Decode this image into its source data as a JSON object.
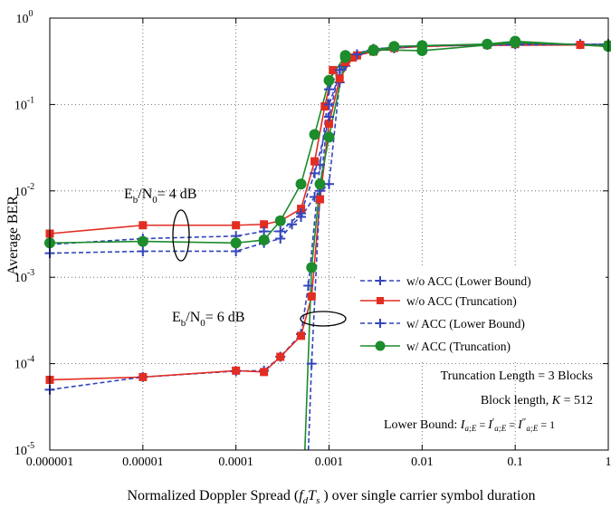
{
  "chart_data": {
    "type": "line",
    "xscale": "log",
    "yscale": "log",
    "xlim": [
      1e-06,
      1
    ],
    "ylim": [
      1e-05,
      1
    ],
    "xlabel": "Normalized Doppler Spread (f_d T_s ) over single carrier symbol duration",
    "xlabel_parts": {
      "pre": "Normalized Doppler Spread (",
      "f": "f",
      "d": "d",
      "T": "T",
      "s": "s",
      "post": " ) over single carrier symbol duration"
    },
    "ylabel": "Average BER",
    "xticks": [
      {
        "value": 1e-06,
        "label": "0.000001"
      },
      {
        "value": 1e-05,
        "label": "0.00001"
      },
      {
        "value": 0.0001,
        "label": "0.0001"
      },
      {
        "value": 0.001,
        "label": "0.001"
      },
      {
        "value": 0.01,
        "label": "0.01"
      },
      {
        "value": 0.1,
        "label": "0.1"
      },
      {
        "value": 1,
        "label": "1"
      }
    ],
    "yticks": [
      {
        "value": 1e-05,
        "base": "10",
        "exp": "-5"
      },
      {
        "value": 0.0001,
        "base": "10",
        "exp": "-4"
      },
      {
        "value": 0.001,
        "base": "10",
        "exp": "-3"
      },
      {
        "value": 0.01,
        "base": "10",
        "exp": "-2"
      },
      {
        "value": 0.1,
        "base": "10",
        "exp": "-1"
      },
      {
        "value": 1,
        "base": "10",
        "exp": "0"
      }
    ],
    "grid": "major (dotted)",
    "legend_position": "lower-right",
    "series": [
      {
        "name": "w/o ACC (Lower Bound)",
        "color": "#3344bb",
        "dash": "dashed",
        "marker": "plus",
        "curves": [
          {
            "label": "Eb/N0 = 4 dB",
            "points": [
              [
                1e-06,
                0.0019
              ],
              [
                1e-05,
                0.002
              ],
              [
                0.0001,
                0.002
              ],
              [
                0.0002,
                0.0025
              ],
              [
                0.0003,
                0.0028
              ],
              [
                0.0004,
                0.0041
              ],
              [
                0.0005,
                0.005
              ],
              [
                0.0007,
                0.0085
              ],
              [
                0.001,
                0.012
              ],
              [
                0.0013,
                0.18
              ],
              [
                0.0015,
                0.28
              ],
              [
                0.002,
                0.38
              ],
              [
                0.003,
                0.42
              ],
              [
                0.005,
                0.45
              ],
              [
                0.01,
                0.47
              ],
              [
                0.05,
                0.49
              ],
              [
                0.1,
                0.5
              ],
              [
                0.5,
                0.5
              ],
              [
                1,
                0.48
              ]
            ]
          },
          {
            "label": "Eb/N0 = 6 dB",
            "points": [
              [
                1e-06,
                5e-05
              ],
              [
                1e-05,
                7e-05
              ],
              [
                0.0001,
                8.2e-05
              ],
              [
                0.0002,
                8.3e-05
              ],
              [
                0.0003,
                0.00012
              ],
              [
                0.0005,
                0.00022
              ],
              [
                0.0006,
                0.0008
              ],
              [
                0.0008,
                0.02
              ],
              [
                0.001,
                0.15
              ],
              [
                0.0015,
                0.36
              ],
              [
                0.003,
                0.44
              ],
              [
                0.01,
                0.48
              ],
              [
                1,
                0.5
              ]
            ]
          }
        ]
      },
      {
        "name": "w/o ACC (Truncation)",
        "color": "#e32d22",
        "dash": "solid",
        "marker": "square",
        "curves": [
          {
            "label": "Eb/N0 = 4 dB",
            "points": [
              [
                1e-06,
                0.0032
              ],
              [
                1e-05,
                0.004
              ],
              [
                0.0001,
                0.004
              ],
              [
                0.0002,
                0.0041
              ],
              [
                0.0003,
                0.0045
              ],
              [
                0.0005,
                0.0062
              ],
              [
                0.0007,
                0.022
              ],
              [
                0.0009,
                0.095
              ],
              [
                0.0011,
                0.25
              ],
              [
                0.0015,
                0.31
              ],
              [
                0.002,
                0.37
              ],
              [
                0.003,
                0.41
              ],
              [
                0.005,
                0.45
              ],
              [
                0.01,
                0.47
              ],
              [
                0.05,
                0.49
              ],
              [
                0.1,
                0.5
              ],
              [
                0.5,
                0.49
              ],
              [
                1,
                0.47
              ]
            ]
          },
          {
            "label": "Eb/N0 = 6 dB",
            "points": [
              [
                1e-06,
                6.5e-05
              ],
              [
                1e-05,
                7e-05
              ],
              [
                0.0001,
                8.3e-05
              ],
              [
                0.0002,
                8e-05
              ],
              [
                0.0003,
                0.00012
              ],
              [
                0.0005,
                0.00021
              ],
              [
                0.00065,
                0.0006
              ],
              [
                0.0008,
                0.008
              ],
              [
                0.001,
                0.06
              ],
              [
                0.0013,
                0.2
              ],
              [
                0.0018,
                0.35
              ],
              [
                0.003,
                0.43
              ],
              [
                0.01,
                0.48
              ],
              [
                1,
                0.49
              ]
            ]
          }
        ]
      },
      {
        "name": "w/ ACC (Lower Bound)",
        "color": "#3344bb",
        "dash": "dashed",
        "marker": "plus",
        "curves": [
          {
            "label": "Eb/N0 = 4 dB",
            "points": [
              [
                1e-06,
                0.0024
              ],
              [
                1e-05,
                0.0028
              ],
              [
                0.0001,
                0.003
              ],
              [
                0.0002,
                0.0034
              ],
              [
                0.0003,
                0.0034
              ],
              [
                0.0005,
                0.0055
              ],
              [
                0.0007,
                0.016
              ],
              [
                0.001,
                0.072
              ],
              [
                0.0013,
                0.25
              ],
              [
                0.002,
                0.38
              ],
              [
                0.005,
                0.45
              ],
              [
                0.01,
                0.48
              ],
              [
                0.1,
                0.5
              ],
              [
                1,
                0.49
              ]
            ]
          },
          {
            "label": "Eb/N0 = 6 dB",
            "points": [
              [
                0.0006,
                1e-05
              ],
              [
                0.00065,
                0.0001
              ],
              [
                0.0008,
                0.01
              ],
              [
                0.001,
                0.1
              ],
              [
                0.0015,
                0.35
              ],
              [
                0.003,
                0.44
              ],
              [
                0.01,
                0.48
              ],
              [
                1,
                0.5
              ]
            ]
          }
        ]
      },
      {
        "name": "w/ ACC (Truncation)",
        "color": "#1c8c2c",
        "dash": "solid",
        "marker": "circle",
        "curves": [
          {
            "label": "Eb/N0 = 4 dB",
            "points": [
              [
                1e-06,
                0.0025
              ],
              [
                1e-05,
                0.0026
              ],
              [
                0.0001,
                0.0025
              ],
              [
                0.0002,
                0.0027
              ],
              [
                0.0003,
                0.0045
              ],
              [
                0.0005,
                0.012
              ],
              [
                0.0007,
                0.045
              ],
              [
                0.001,
                0.19
              ],
              [
                0.0015,
                0.37
              ],
              [
                0.003,
                0.42
              ],
              [
                0.005,
                0.47
              ],
              [
                0.01,
                0.48
              ],
              [
                0.05,
                0.5
              ],
              [
                0.1,
                0.54
              ],
              [
                1,
                0.47
              ]
            ]
          },
          {
            "label": "Eb/N0 = 6 dB",
            "points": [
              [
                0.00055,
                1e-05
              ],
              [
                0.00065,
                0.0013
              ],
              [
                0.0008,
                0.012
              ],
              [
                0.001,
                0.042
              ],
              [
                0.0015,
                0.35
              ],
              [
                0.003,
                0.43
              ],
              [
                0.01,
                0.42
              ],
              [
                0.1,
                0.52
              ],
              [
                1,
                0.48
              ]
            ]
          }
        ]
      }
    ],
    "annotations": [
      {
        "text_main": "E",
        "text_sub1": "b",
        "text_mid": "/N",
        "text_sub2": "0",
        "text_end": "= 4 dB"
      },
      {
        "text_main": "E",
        "text_sub1": "b",
        "text_mid": "/N",
        "text_sub2": "0",
        "text_end": "= 6 dB"
      }
    ],
    "notes": {
      "truncation": "Truncation Length = 3 Blocks",
      "block_pre": "Block length, ",
      "block_K": "K",
      "block_post": " = 512",
      "lower_bound_pre": "Lower Bound: ",
      "lower_bound_eq": "I a;E = I′ a;E = I″ a;E = 1",
      "lb": {
        "I": "I",
        "sub": "a;E",
        "prime1": "′",
        "prime2": "″",
        "eq": " = ",
        "one": "1"
      }
    }
  }
}
